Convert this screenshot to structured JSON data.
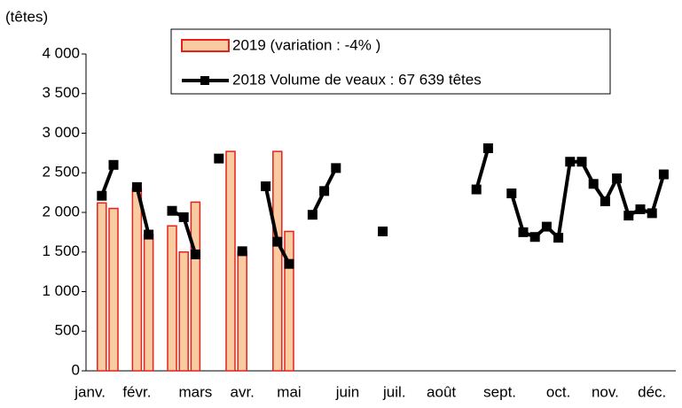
{
  "chart_data": {
    "type": "bar_line",
    "y_label": "(têtes)",
    "categories": [
      "janv.",
      null,
      null,
      null,
      "févr.",
      null,
      null,
      null,
      null,
      "mars",
      null,
      null,
      null,
      "avr.",
      null,
      null,
      null,
      "mai",
      null,
      null,
      null,
      null,
      "juin",
      null,
      null,
      null,
      "juil.",
      null,
      null,
      null,
      "août",
      null,
      null,
      null,
      null,
      "sept.",
      null,
      null,
      null,
      null,
      "oct.",
      null,
      null,
      null,
      "nov.",
      null,
      null,
      null,
      "déc.",
      null
    ],
    "series": [
      {
        "name": "2019 (variation : -4% )",
        "type": "bar",
        "color": "#f9cba0",
        "edge_color": "#e3221c",
        "values": [
          null,
          2120,
          2050,
          null,
          2300,
          1720,
          null,
          1830,
          1500,
          2130,
          null,
          null,
          2770,
          1510,
          null,
          null,
          2770,
          1760,
          null,
          null,
          null,
          null,
          null,
          null,
          null,
          null,
          null,
          null,
          null,
          null,
          null,
          null,
          null,
          null,
          null,
          null,
          null,
          null,
          null,
          null,
          null,
          null,
          null,
          null,
          null,
          null,
          null,
          null,
          null,
          null
        ]
      },
      {
        "name": "2018 Volume de veaux : 67 639 têtes",
        "type": "line",
        "color": "#000000",
        "values": [
          null,
          2210,
          2600,
          null,
          2320,
          1720,
          null,
          2020,
          1940,
          1470,
          null,
          2680,
          null,
          1510,
          null,
          2330,
          1630,
          1350,
          null,
          1970,
          2270,
          2560,
          null,
          null,
          null,
          1760,
          null,
          null,
          null,
          null,
          null,
          null,
          null,
          2290,
          2810,
          null,
          2240,
          1750,
          1690,
          1820,
          1680,
          2640,
          2640,
          2360,
          2140,
          2430,
          1960,
          2040,
          1990,
          2480
        ]
      }
    ],
    "ylim": [
      0,
      4000
    ],
    "yticks": [
      0,
      500,
      {
        "value": 1000,
        "label": "1 000"
      },
      {
        "value": 1500,
        "label": "1 500"
      },
      {
        "value": 2000,
        "label": "2 000"
      },
      {
        "value": 2500,
        "label": "2 500"
      },
      {
        "value": 3000,
        "label": "3 000"
      },
      {
        "value": 3500,
        "label": "3 500"
      },
      {
        "value": 4000,
        "label": "4 000"
      }
    ],
    "grid": false
  }
}
